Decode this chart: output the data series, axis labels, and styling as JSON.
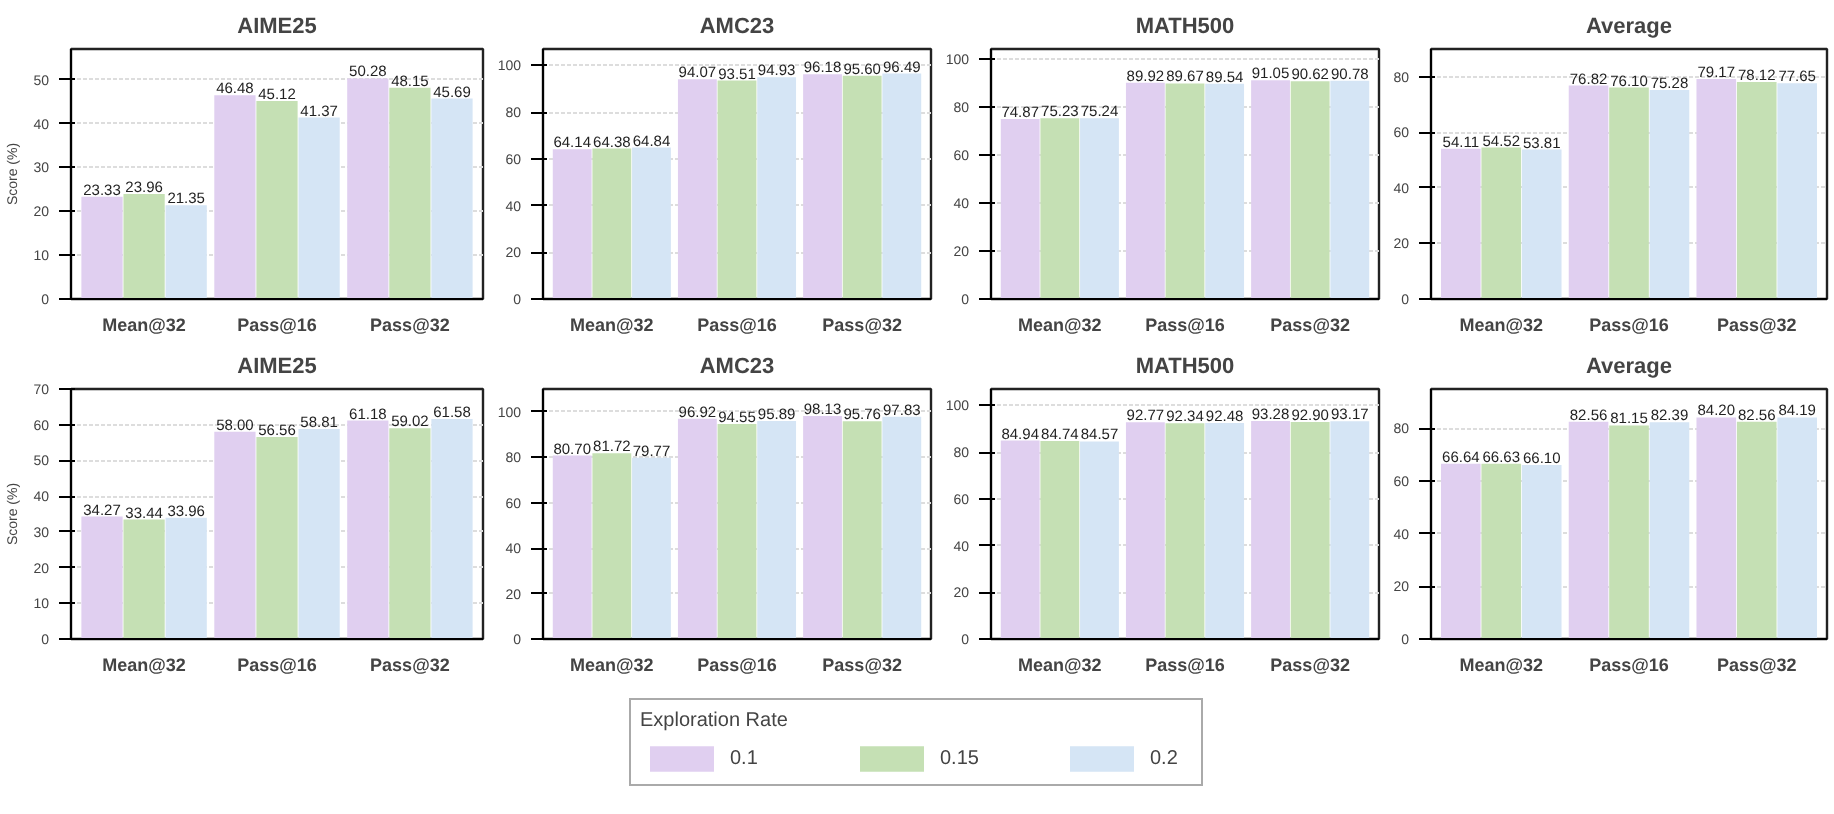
{
  "chart_data": [
    {
      "type": "bar",
      "title": "AIME25",
      "ylabel": "Score (%)",
      "categories": [
        "Mean@32",
        "Pass@16",
        "Pass@32"
      ],
      "ylim": [
        0,
        57
      ],
      "yticks": [
        0,
        10,
        20,
        30,
        40,
        50
      ],
      "grid": "y",
      "series": [
        {
          "color": "#e0cff0",
          "values": [
            23.33,
            46.48,
            50.28
          ],
          "value_labels": [
            "23.33",
            "46.48",
            "50.28"
          ]
        },
        {
          "color": "#c5e0b4",
          "values": [
            23.96,
            45.12,
            48.15
          ],
          "value_labels": [
            "23.96",
            "45.12",
            "48.15"
          ]
        },
        {
          "color": "#d5e5f5",
          "values": [
            21.35,
            41.37,
            45.69
          ],
          "value_labels": [
            "21.35",
            "41.37",
            "45.69"
          ]
        }
      ]
    },
    {
      "type": "bar",
      "title": "AMC23",
      "categories": [
        "Mean@32",
        "Pass@16",
        "Pass@32"
      ],
      "ylim": [
        0,
        107
      ],
      "yticks": [
        0,
        20,
        40,
        60,
        80,
        100
      ],
      "grid": "y",
      "series": [
        {
          "color": "#e0cff0",
          "values": [
            64.14,
            94.07,
            96.18
          ],
          "value_labels": [
            "64.14",
            "94.07",
            "96.18"
          ]
        },
        {
          "color": "#c5e0b4",
          "values": [
            64.38,
            93.51,
            95.6
          ],
          "value_labels": [
            "64.38",
            "93.51",
            "95.60"
          ]
        },
        {
          "color": "#d5e5f5",
          "values": [
            64.84,
            94.93,
            96.49
          ],
          "value_labels": [
            "64.84",
            "94.93",
            "96.49"
          ]
        }
      ]
    },
    {
      "type": "bar",
      "title": "MATH500",
      "categories": [
        "Mean@32",
        "Pass@16",
        "Pass@32"
      ],
      "ylim": [
        0,
        104
      ],
      "yticks": [
        0,
        20,
        40,
        60,
        80,
        100
      ],
      "grid": "y",
      "series": [
        {
          "color": "#e0cff0",
          "values": [
            74.87,
            89.92,
            91.05
          ],
          "value_labels": [
            "74.87",
            "89.92",
            "91.05"
          ]
        },
        {
          "color": "#c5e0b4",
          "values": [
            75.23,
            89.67,
            90.62
          ],
          "value_labels": [
            "75.23",
            "89.67",
            "90.62"
          ]
        },
        {
          "color": "#d5e5f5",
          "values": [
            75.24,
            89.54,
            90.78
          ],
          "value_labels": [
            "75.24",
            "89.54",
            "90.78"
          ]
        }
      ]
    },
    {
      "type": "bar",
      "title": "Average",
      "categories": [
        "Mean@32",
        "Pass@16",
        "Pass@32"
      ],
      "ylim": [
        0,
        90
      ],
      "yticks": [
        0,
        20,
        40,
        60,
        80
      ],
      "grid": "y",
      "series": [
        {
          "color": "#e0cff0",
          "values": [
            54.11,
            76.82,
            79.17
          ],
          "value_labels": [
            "54.11",
            "76.82",
            "79.17"
          ]
        },
        {
          "color": "#c5e0b4",
          "values": [
            54.52,
            76.1,
            78.12
          ],
          "value_labels": [
            "54.52",
            "76.10",
            "78.12"
          ]
        },
        {
          "color": "#d5e5f5",
          "values": [
            53.81,
            75.28,
            77.65
          ],
          "value_labels": [
            "53.81",
            "75.28",
            "77.65"
          ]
        }
      ]
    },
    {
      "type": "bar",
      "title": "AIME25",
      "ylabel": "Score (%)",
      "categories": [
        "Mean@32",
        "Pass@16",
        "Pass@32"
      ],
      "ylim": [
        0,
        70
      ],
      "yticks": [
        0,
        10,
        20,
        30,
        40,
        50,
        60,
        70
      ],
      "grid": "y",
      "series": [
        {
          "color": "#e0cff0",
          "values": [
            34.27,
            58.0,
            61.18
          ],
          "value_labels": [
            "34.27",
            "58.00",
            "61.18"
          ]
        },
        {
          "color": "#c5e0b4",
          "values": [
            33.44,
            56.56,
            59.02
          ],
          "value_labels": [
            "33.44",
            "56.56",
            "59.02"
          ]
        },
        {
          "color": "#d5e5f5",
          "values": [
            33.96,
            58.81,
            61.58
          ],
          "value_labels": [
            "33.96",
            "58.81",
            "61.58"
          ]
        }
      ]
    },
    {
      "type": "bar",
      "title": "AMC23",
      "categories": [
        "Mean@32",
        "Pass@16",
        "Pass@32"
      ],
      "ylim": [
        0,
        110
      ],
      "yticks": [
        0,
        20,
        40,
        60,
        80,
        100
      ],
      "grid": "y",
      "series": [
        {
          "color": "#e0cff0",
          "values": [
            80.7,
            96.92,
            98.13
          ],
          "value_labels": [
            "80.70",
            "96.92",
            "98.13"
          ]
        },
        {
          "color": "#c5e0b4",
          "values": [
            81.72,
            94.55,
            95.76
          ],
          "value_labels": [
            "81.72",
            "94.55",
            "95.76"
          ]
        },
        {
          "color": "#d5e5f5",
          "values": [
            79.77,
            95.89,
            97.83
          ],
          "value_labels": [
            "79.77",
            "95.89",
            "97.83"
          ]
        }
      ]
    },
    {
      "type": "bar",
      "title": "MATH500",
      "categories": [
        "Mean@32",
        "Pass@16",
        "Pass@32"
      ],
      "ylim": [
        0,
        107
      ],
      "yticks": [
        0,
        20,
        40,
        60,
        80,
        100
      ],
      "grid": "y",
      "series": [
        {
          "color": "#e0cff0",
          "values": [
            84.94,
            92.77,
            93.28
          ],
          "value_labels": [
            "84.94",
            "92.77",
            "93.28"
          ]
        },
        {
          "color": "#c5e0b4",
          "values": [
            84.74,
            92.34,
            92.9
          ],
          "value_labels": [
            "84.74",
            "92.34",
            "92.90"
          ]
        },
        {
          "color": "#d5e5f5",
          "values": [
            84.57,
            92.48,
            93.17
          ],
          "value_labels": [
            "84.57",
            "92.48",
            "93.17"
          ]
        }
      ]
    },
    {
      "type": "bar",
      "title": "Average",
      "categories": [
        "Mean@32",
        "Pass@16",
        "Pass@32"
      ],
      "ylim": [
        0,
        95
      ],
      "yticks": [
        0,
        20,
        40,
        60,
        80
      ],
      "grid": "y",
      "legend": "bottom",
      "legend_title": "Exploration Rate",
      "series": [
        {
          "name": "0.1",
          "color": "#e0cff0",
          "values": [
            66.64,
            82.56,
            84.2
          ],
          "value_labels": [
            "66.64",
            "82.56",
            "84.20"
          ]
        },
        {
          "name": "0.15",
          "color": "#c5e0b4",
          "values": [
            66.63,
            81.15,
            82.56
          ],
          "value_labels": [
            "66.63",
            "81.15",
            "82.56"
          ]
        },
        {
          "name": "0.2",
          "color": "#d5e5f5",
          "values": [
            66.1,
            82.39,
            84.19
          ],
          "value_labels": [
            "66.10",
            "82.39",
            "84.19"
          ]
        }
      ]
    }
  ]
}
